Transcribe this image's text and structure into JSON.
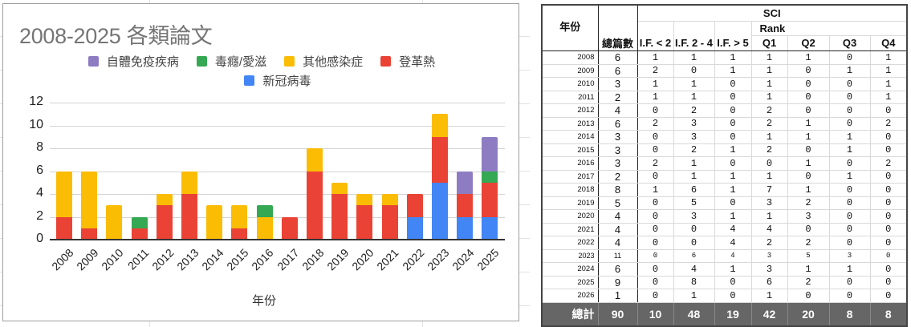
{
  "chart_data": {
    "type": "bar",
    "stacked": true,
    "title": "2008-2025 各類論文",
    "xlabel": "年份",
    "ylabel": "",
    "ylim": [
      0,
      12
    ],
    "yticks": [
      0,
      2,
      4,
      6,
      8,
      10,
      12
    ],
    "grid": true,
    "legend_position": "top",
    "categories": [
      "2008",
      "2009",
      "2010",
      "2011",
      "2012",
      "2013",
      "2014",
      "2015",
      "2016",
      "2017",
      "2018",
      "2019",
      "2020",
      "2021",
      "2022",
      "2023",
      "2024",
      "2025"
    ],
    "series": [
      {
        "name": "新冠病毒",
        "color": "#4285f4",
        "values": [
          0,
          0,
          0,
          0,
          0,
          0,
          0,
          0,
          0,
          0,
          0,
          0,
          0,
          0,
          2,
          5,
          2,
          2
        ]
      },
      {
        "name": "登革熱",
        "color": "#ea4335",
        "values": [
          2,
          1,
          0,
          1,
          3,
          4,
          0,
          1,
          0,
          2,
          6,
          4,
          3,
          3,
          2,
          4,
          2,
          3
        ]
      },
      {
        "name": "其他感染症",
        "color": "#fbbc04",
        "values": [
          4,
          5,
          3,
          0,
          1,
          2,
          3,
          2,
          2,
          0,
          2,
          1,
          1,
          1,
          0,
          2,
          0,
          0
        ]
      },
      {
        "name": "毒癮/愛滋",
        "color": "#34a853",
        "values": [
          0,
          0,
          0,
          1,
          0,
          0,
          0,
          0,
          1,
          0,
          0,
          0,
          0,
          0,
          0,
          0,
          0,
          1
        ]
      },
      {
        "name": "自體免疫疾病",
        "color": "#8e7cc3",
        "values": [
          0,
          0,
          0,
          0,
          0,
          0,
          0,
          0,
          0,
          0,
          0,
          0,
          0,
          0,
          0,
          0,
          2,
          3
        ]
      }
    ],
    "legend_order": [
      "自體免疫疾病",
      "毒癮/愛滋",
      "其他感染症",
      "登革熱",
      "新冠病毒"
    ]
  },
  "chart": {
    "title": "2008-2025 各類論文",
    "x_axis_label": "年份",
    "legend": [
      {
        "label": "自體免疫疾病",
        "color": "#8e7cc3"
      },
      {
        "label": "毒癮/愛滋",
        "color": "#34a853"
      },
      {
        "label": "其他感染症",
        "color": "#fbbc04"
      },
      {
        "label": "登革熱",
        "color": "#ea4335"
      },
      {
        "label": "新冠病毒",
        "color": "#4285f4"
      }
    ]
  },
  "table": {
    "header": {
      "year": "年份",
      "total": "總篇數",
      "sci": "SCI",
      "rank": "Rank",
      "if_lt2": "I.F. < 2",
      "if_2_4": "I.F. 2 - 4",
      "if_gt5": "I.F. > 5",
      "q1": "Q1",
      "q2": "Q2",
      "q3": "Q3",
      "q4": "Q4"
    },
    "rows": [
      {
        "year": "2008",
        "total": "6",
        "if_lt2": "1",
        "if_2_4": "1",
        "if_gt5": "1",
        "q1": "1",
        "q2": "1",
        "q3": "0",
        "q4": "1"
      },
      {
        "year": "2009",
        "total": "6",
        "if_lt2": "2",
        "if_2_4": "0",
        "if_gt5": "1",
        "q1": "1",
        "q2": "0",
        "q3": "1",
        "q4": "1"
      },
      {
        "year": "2010",
        "total": "3",
        "if_lt2": "1",
        "if_2_4": "1",
        "if_gt5": "0",
        "q1": "1",
        "q2": "0",
        "q3": "0",
        "q4": "1"
      },
      {
        "year": "2011",
        "total": "2",
        "if_lt2": "1",
        "if_2_4": "1",
        "if_gt5": "0",
        "q1": "1",
        "q2": "0",
        "q3": "0",
        "q4": "1"
      },
      {
        "year": "2012",
        "total": "4",
        "if_lt2": "0",
        "if_2_4": "2",
        "if_gt5": "0",
        "q1": "2",
        "q2": "0",
        "q3": "0",
        "q4": "0"
      },
      {
        "year": "2013",
        "total": "6",
        "if_lt2": "2",
        "if_2_4": "3",
        "if_gt5": "0",
        "q1": "2",
        "q2": "1",
        "q3": "0",
        "q4": "2"
      },
      {
        "year": "2014",
        "total": "3",
        "if_lt2": "0",
        "if_2_4": "3",
        "if_gt5": "0",
        "q1": "1",
        "q2": "1",
        "q3": "1",
        "q4": "0"
      },
      {
        "year": "2015",
        "total": "3",
        "if_lt2": "0",
        "if_2_4": "2",
        "if_gt5": "1",
        "q1": "2",
        "q2": "0",
        "q3": "1",
        "q4": "0"
      },
      {
        "year": "2016",
        "total": "3",
        "if_lt2": "2",
        "if_2_4": "1",
        "if_gt5": "0",
        "q1": "0",
        "q2": "1",
        "q3": "0",
        "q4": "2"
      },
      {
        "year": "2017",
        "total": "2",
        "if_lt2": "0",
        "if_2_4": "1",
        "if_gt5": "1",
        "q1": "1",
        "q2": "0",
        "q3": "1",
        "q4": "0"
      },
      {
        "year": "2018",
        "total": "8",
        "if_lt2": "1",
        "if_2_4": "6",
        "if_gt5": "1",
        "q1": "7",
        "q2": "1",
        "q3": "0",
        "q4": "0"
      },
      {
        "year": "2019",
        "total": "5",
        "if_lt2": "0",
        "if_2_4": "5",
        "if_gt5": "0",
        "q1": "3",
        "q2": "2",
        "q3": "0",
        "q4": "0"
      },
      {
        "year": "2020",
        "total": "4",
        "if_lt2": "0",
        "if_2_4": "3",
        "if_gt5": "1",
        "q1": "1",
        "q2": "3",
        "q3": "0",
        "q4": "0"
      },
      {
        "year": "2021",
        "total": "4",
        "if_lt2": "0",
        "if_2_4": "0",
        "if_gt5": "4",
        "q1": "4",
        "q2": "0",
        "q3": "0",
        "q4": "0"
      },
      {
        "year": "2022",
        "total": "4",
        "if_lt2": "0",
        "if_2_4": "0",
        "if_gt5": "4",
        "q1": "2",
        "q2": "2",
        "q3": "0",
        "q4": "0"
      },
      {
        "year": "2023",
        "total": "11",
        "if_lt2": "0",
        "if_2_4": "6",
        "if_gt5": "4",
        "q1": "3",
        "q2": "5",
        "q3": "3",
        "q4": "0"
      },
      {
        "year": "2024",
        "total": "6",
        "if_lt2": "0",
        "if_2_4": "4",
        "if_gt5": "1",
        "q1": "3",
        "q2": "1",
        "q3": "1",
        "q4": "0"
      },
      {
        "year": "2025",
        "total": "9",
        "if_lt2": "0",
        "if_2_4": "8",
        "if_gt5": "0",
        "q1": "6",
        "q2": "2",
        "q3": "0",
        "q4": "0"
      },
      {
        "year": "2026",
        "total": "1",
        "if_lt2": "0",
        "if_2_4": "1",
        "if_gt5": "0",
        "q1": "1",
        "q2": "0",
        "q3": "0",
        "q4": "0"
      }
    ],
    "totals": {
      "label": "總計",
      "total": "90",
      "if_lt2": "10",
      "if_2_4": "48",
      "if_gt5": "19",
      "q1": "42",
      "q2": "20",
      "q3": "8",
      "q4": "8"
    }
  }
}
